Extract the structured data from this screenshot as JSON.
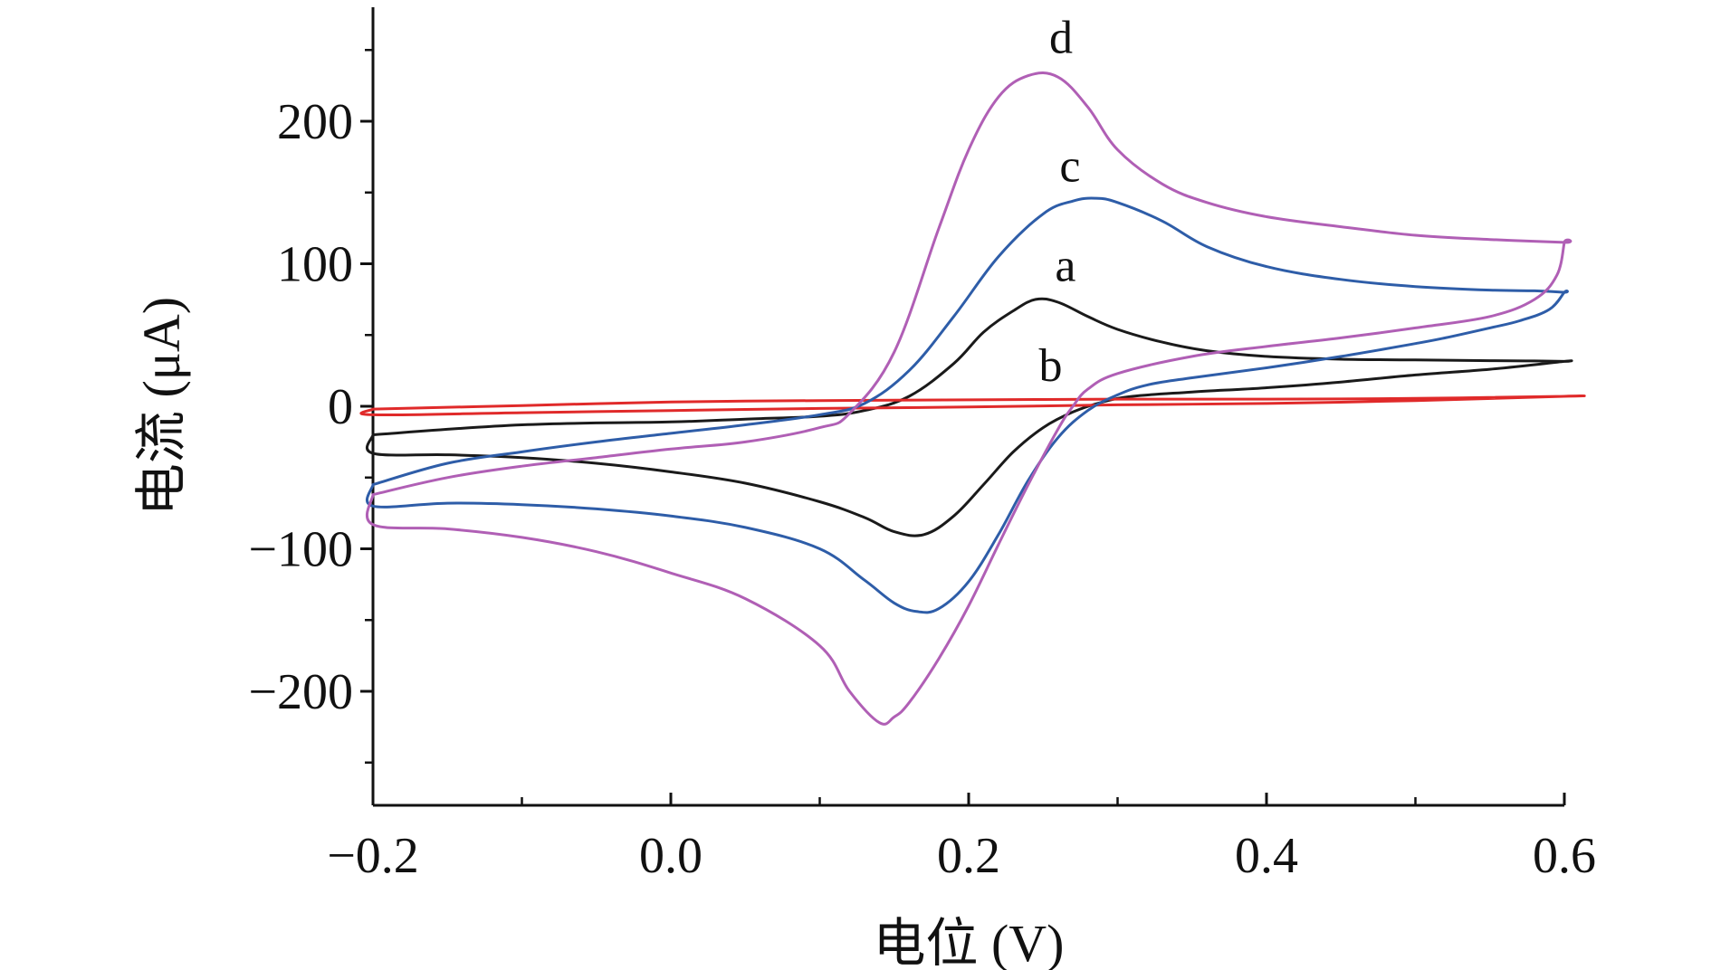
{
  "chart_data": {
    "type": "line",
    "title": "",
    "xlabel": "电位 (V)",
    "ylabel": "电流 (μA)",
    "xlim": [
      -0.2,
      0.6
    ],
    "ylim": [
      -280,
      280
    ],
    "x_ticks": [
      -0.2,
      0.0,
      0.2,
      0.4,
      0.6
    ],
    "x_tick_labels": [
      "−0.2",
      "0.0",
      "0.2",
      "0.4",
      "0.6"
    ],
    "y_ticks": [
      -200,
      -100,
      0,
      100,
      200
    ],
    "y_tick_labels": [
      "−200",
      "−100",
      "0",
      "100",
      "200"
    ],
    "grid": false,
    "legend": "none",
    "series": [
      {
        "name": "a",
        "color": "#1a1a1a",
        "label_at": [
          0.265,
          98
        ],
        "x": [
          -0.2,
          -0.1,
          0.0,
          0.05,
          0.1,
          0.13,
          0.16,
          0.19,
          0.21,
          0.23,
          0.245,
          0.26,
          0.28,
          0.3,
          0.33,
          0.36,
          0.4,
          0.45,
          0.5,
          0.55,
          0.58,
          0.6,
          0.6,
          0.55,
          0.5,
          0.45,
          0.4,
          0.35,
          0.31,
          0.29,
          0.27,
          0.25,
          0.23,
          0.21,
          0.19,
          0.17,
          0.15,
          0.13,
          0.1,
          0.05,
          0.0,
          -0.05,
          -0.1,
          -0.15,
          -0.2,
          -0.2
        ],
        "y": [
          -20,
          -13,
          -11,
          -9,
          -7,
          -3,
          7,
          30,
          52,
          67,
          75,
          73,
          63,
          54,
          45,
          39,
          35,
          33,
          32.5,
          32,
          31.8,
          31.5,
          31.5,
          26,
          22,
          17,
          13,
          10,
          7,
          3,
          -4,
          -15,
          -32,
          -55,
          -77,
          -90,
          -88,
          -78,
          -67,
          -54,
          -46,
          -40,
          -36,
          -34,
          -33,
          -20
        ]
      },
      {
        "name": "b",
        "color": "#e02a2a",
        "label_at": [
          0.255,
          28
        ],
        "x": [
          -0.2,
          -0.1,
          0.0,
          0.1,
          0.2,
          0.3,
          0.4,
          0.5,
          0.6,
          0.6,
          0.5,
          0.4,
          0.3,
          0.2,
          0.1,
          0.0,
          -0.1,
          -0.2,
          -0.2
        ],
        "y": [
          -2,
          0.5,
          3,
          4,
          4.5,
          5,
          5,
          5.5,
          7,
          7,
          4,
          2,
          1,
          -0.5,
          -1.5,
          -3,
          -4.5,
          -6,
          -2
        ]
      },
      {
        "name": "c",
        "color": "#2e5da8",
        "label_at": [
          0.268,
          168
        ],
        "x": [
          -0.2,
          -0.15,
          -0.1,
          -0.05,
          0.0,
          0.05,
          0.1,
          0.13,
          0.16,
          0.19,
          0.22,
          0.25,
          0.27,
          0.285,
          0.3,
          0.33,
          0.36,
          0.4,
          0.45,
          0.5,
          0.55,
          0.58,
          0.6,
          0.6,
          0.59,
          0.57,
          0.55,
          0.52,
          0.5,
          0.45,
          0.4,
          0.35,
          0.32,
          0.3,
          0.28,
          0.26,
          0.24,
          0.22,
          0.2,
          0.18,
          0.165,
          0.15,
          0.13,
          0.1,
          0.05,
          0.0,
          -0.05,
          -0.1,
          -0.15,
          -0.2,
          -0.2
        ],
        "y": [
          -55,
          -40,
          -32,
          -25,
          -19,
          -13,
          -6,
          2,
          25,
          63,
          105,
          135,
          144,
          146,
          143,
          130,
          112,
          98,
          89,
          84,
          81.5,
          81,
          80,
          80,
          68,
          60,
          55,
          48,
          44,
          35,
          27,
          20,
          15,
          8,
          -3,
          -22,
          -52,
          -90,
          -123,
          -142,
          -144,
          -138,
          -122,
          -100,
          -85,
          -77,
          -72,
          -69,
          -68,
          -70,
          -55
        ]
      },
      {
        "name": "d",
        "color": "#b05fb5",
        "label_at": [
          0.262,
          258
        ],
        "x": [
          -0.2,
          -0.15,
          -0.1,
          -0.05,
          0.0,
          0.05,
          0.1,
          0.12,
          0.15,
          0.18,
          0.2,
          0.22,
          0.24,
          0.26,
          0.28,
          0.3,
          0.33,
          0.36,
          0.4,
          0.45,
          0.5,
          0.55,
          0.6,
          0.6,
          0.595,
          0.58,
          0.55,
          0.5,
          0.45,
          0.4,
          0.35,
          0.3,
          0.28,
          0.27,
          0.26,
          0.24,
          0.22,
          0.2,
          0.18,
          0.16,
          0.15,
          0.14,
          0.12,
          0.1,
          0.05,
          0.0,
          -0.05,
          -0.1,
          -0.15,
          -0.2,
          -0.2
        ],
        "y": [
          -62,
          -50,
          -42,
          -36,
          -30,
          -25,
          -15,
          -5,
          38,
          125,
          180,
          217,
          232,
          231,
          210,
          180,
          156,
          143,
          133,
          126,
          120,
          117,
          115,
          115,
          92,
          75,
          63,
          55,
          48,
          42,
          35,
          23,
          12,
          0,
          -16,
          -55,
          -97,
          -140,
          -177,
          -208,
          -218,
          -222,
          -200,
          -168,
          -135,
          -117,
          -102,
          -92,
          -86,
          -83,
          -62
        ]
      }
    ]
  }
}
